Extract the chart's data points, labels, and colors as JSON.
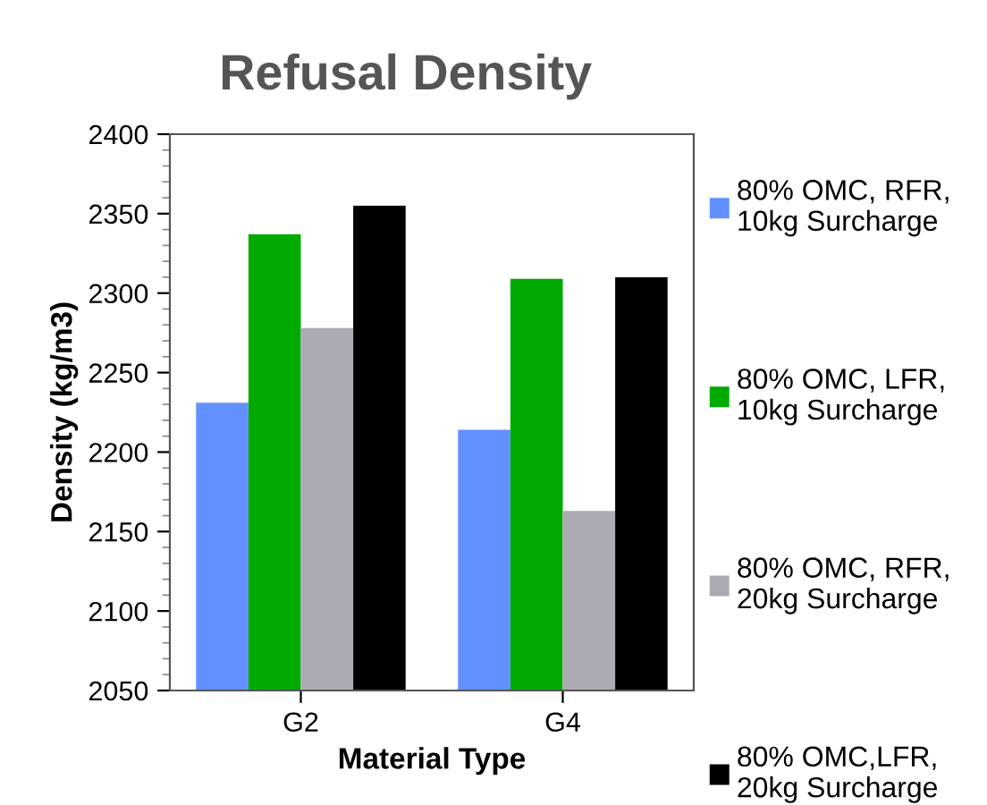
{
  "chart_data": {
    "type": "bar",
    "title": "Refusal Density",
    "xlabel": "Material Type",
    "ylabel": "Density (kg/m3)",
    "categories": [
      "G2",
      "G4"
    ],
    "series": [
      {
        "name": "80% OMC, RFR, 10kg Surcharge",
        "color": "#6390ff",
        "values": [
          2231,
          2214
        ]
      },
      {
        "name": "80% OMC, LFR, 10kg Surcharge",
        "color": "#00aa00",
        "values": [
          2337,
          2309
        ]
      },
      {
        "name": "80% OMC, RFR, 20kg Surcharge",
        "color": "#ababb5",
        "values": [
          2278,
          2163
        ]
      },
      {
        "name": "80% OMC,LFR, 20kg Surcharge",
        "color": "#000000",
        "values": [
          2355,
          2310
        ]
      }
    ],
    "ylim": [
      2050,
      2400
    ],
    "yticks": [
      2050,
      2100,
      2150,
      2200,
      2250,
      2300,
      2350,
      2400
    ],
    "grid": false,
    "legend": "right"
  }
}
